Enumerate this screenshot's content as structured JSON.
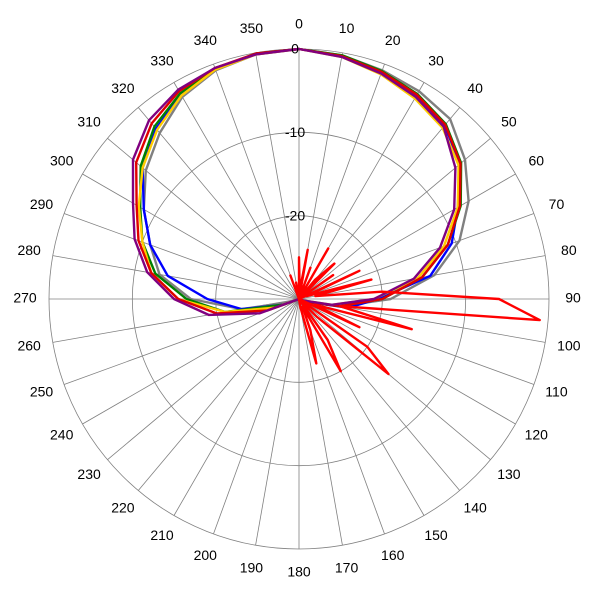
{
  "chart_data": {
    "type": "polar",
    "xticks": [
      0,
      10,
      20,
      30,
      40,
      50,
      60,
      70,
      80,
      90,
      100,
      110,
      120,
      130,
      140,
      150,
      160,
      170,
      180,
      190,
      200,
      210,
      220,
      230,
      240,
      250,
      260,
      270,
      280,
      290,
      300,
      310,
      320,
      330,
      340,
      350
    ],
    "ylim": [
      -30,
      0
    ],
    "yticks": [
      0,
      -10,
      -20
    ],
    "x": [
      0,
      10,
      20,
      30,
      40,
      50,
      60,
      70,
      80,
      90,
      100,
      110,
      120,
      130,
      140,
      150,
      160,
      170,
      180,
      190,
      200,
      210,
      220,
      230,
      240,
      250,
      260,
      270,
      280,
      290,
      300,
      310,
      320,
      330,
      340,
      350
    ],
    "series": [
      {
        "color": "#808080",
        "values": [
          0,
          -0.3,
          -0.8,
          -1.2,
          -1.8,
          -4,
          -6.5,
          -9.5,
          -13.5,
          -19,
          -25,
          -29,
          -30,
          -30,
          -30,
          -30,
          -30,
          -30,
          -30,
          -30,
          -30,
          -30,
          -30,
          -30,
          -30,
          -29,
          -23,
          -17,
          -13,
          -11,
          -8.5,
          -6,
          -4,
          -2,
          -0.8,
          -0.2
        ]
      },
      {
        "color": "#0000ff",
        "values": [
          0,
          -0.4,
          -1,
          -1.8,
          -2.8,
          -4.8,
          -8,
          -10.5,
          -14,
          -20.5,
          -24,
          -29,
          -30,
          -30,
          -30,
          -30,
          -30,
          -30,
          -30,
          -30,
          -30,
          -30,
          -30,
          -30,
          -30,
          -28,
          -23,
          -19,
          -14,
          -11,
          -8.5,
          -5.5,
          -3.3,
          -1.7,
          -0.7,
          -0.1
        ]
      },
      {
        "color": "#008000",
        "values": [
          0,
          -0.3,
          -0.9,
          -1.6,
          -2.6,
          -4.6,
          -7.6,
          -11,
          -15,
          -20,
          -25,
          -29,
          -30,
          -30,
          -30,
          -30,
          -30,
          -30,
          -30,
          -30,
          -30,
          -30,
          -30,
          -30,
          -30,
          -28,
          -21,
          -16.5,
          -12.5,
          -10,
          -8,
          -5.2,
          -3,
          -1.5,
          -0.6,
          -0.1
        ]
      },
      {
        "color": "#ffcc00",
        "values": [
          0,
          -0.5,
          -1.3,
          -2.2,
          -3.2,
          -5,
          -8,
          -11.5,
          -15.5,
          -21,
          -26,
          -29.5,
          -30,
          -30,
          -30,
          -30,
          -30,
          -30,
          -30,
          -30,
          -30,
          -30,
          -30,
          -30,
          -30,
          -27,
          -21,
          -15.5,
          -12,
          -10,
          -7.8,
          -5.5,
          -3.5,
          -1.8,
          -0.7,
          -0.2
        ]
      },
      {
        "color": "#e00000",
        "values": [
          0,
          -0.4,
          -1,
          -1.7,
          -2.7,
          -4.7,
          -7.7,
          -11,
          -15,
          -20,
          -25,
          -29,
          -30,
          -30,
          -30,
          -30,
          -30,
          -30,
          -30,
          -30,
          -30,
          -30,
          -30,
          -30,
          -30,
          -26,
          -20,
          -15.5,
          -12,
          -9.5,
          -7.5,
          -4.5,
          -2.5,
          -1.2,
          -0.5,
          -0.1
        ]
      },
      {
        "color": "#800080",
        "values": [
          0,
          -0.5,
          -1.2,
          -2,
          -3,
          -5.5,
          -8.5,
          -12,
          -16,
          -21,
          -26,
          -29.5,
          -30,
          -30,
          -30,
          -30,
          -30,
          -30,
          -30,
          -30,
          -30,
          -30,
          -30,
          -30,
          -30,
          -25,
          -19,
          -15,
          -11.5,
          -9,
          -7,
          -4,
          -2,
          -1,
          -0.5,
          -0.2
        ]
      },
      {
        "color": "#ff0000",
        "x": [
          0,
          5,
          10,
          15,
          20,
          25,
          30,
          35,
          40,
          45,
          50,
          55,
          60,
          65,
          70,
          75,
          80,
          85,
          90,
          95,
          100,
          105,
          110,
          115,
          120,
          125,
          130,
          135,
          140,
          145,
          150,
          155,
          160,
          165,
          170,
          175,
          180,
          185,
          190,
          195,
          200,
          205,
          210,
          215,
          220,
          225,
          230,
          235,
          240,
          245,
          250,
          255,
          260,
          265,
          270,
          275,
          280,
          285,
          290,
          295,
          300,
          305,
          310,
          315,
          320,
          325,
          330,
          335,
          340,
          345,
          350,
          355
        ],
        "values": [
          -25,
          -29,
          -24,
          -30,
          -26,
          -30,
          -23,
          -30,
          -27,
          -24,
          -30,
          -25,
          -30,
          -22,
          -29,
          -21,
          -28,
          -20,
          -6,
          -1,
          -25,
          -16,
          -28,
          -22,
          -30,
          -20,
          -16,
          -27,
          -30,
          -24,
          -20,
          -29,
          -26,
          -22,
          -29,
          -30,
          -30,
          -30,
          -30,
          -30,
          -30,
          -30,
          -30,
          -30,
          -30,
          -30,
          -30,
          -30,
          -30,
          -30,
          -30,
          -30,
          -30,
          -30,
          -30,
          -30,
          -30,
          -30,
          -30,
          -30,
          -30,
          -30,
          -30,
          -30,
          -30,
          -30,
          -30,
          -30,
          -27,
          -30,
          -28,
          -30
        ]
      }
    ]
  }
}
